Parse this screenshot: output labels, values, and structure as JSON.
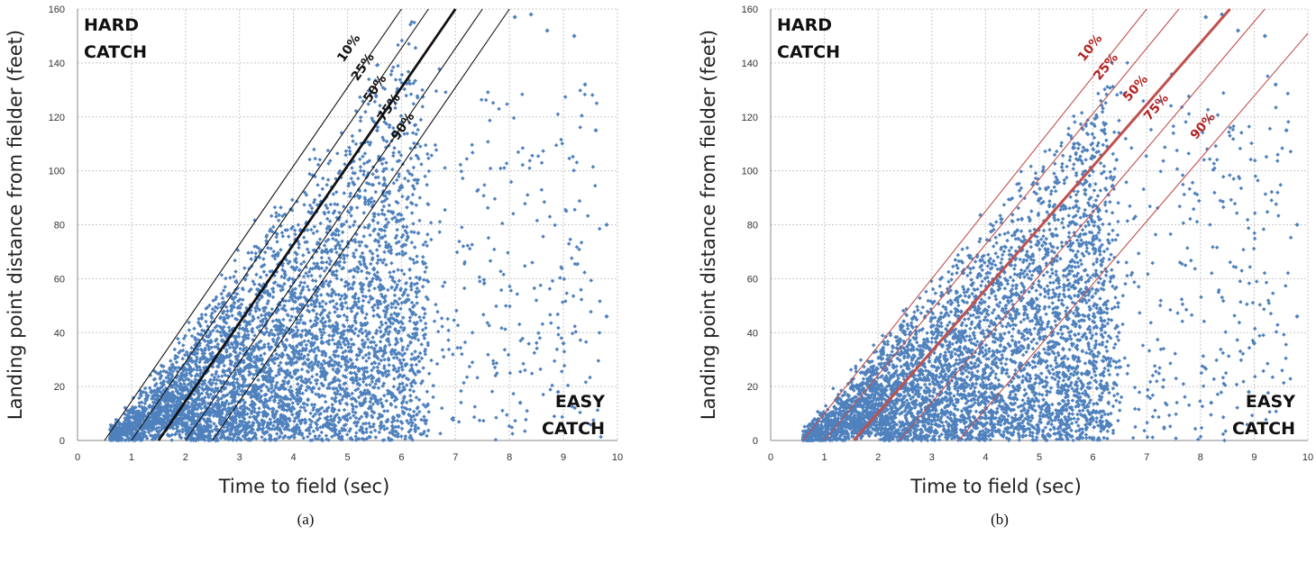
{
  "chart_data": [
    {
      "type": "scatter",
      "subcaption": "(a)",
      "xlabel": "Time to field (sec)",
      "ylabel": "Landing point distance from fielder (feet)",
      "xlim": [
        0,
        10
      ],
      "ylim": [
        0,
        160
      ],
      "xticks": [
        "0",
        "1",
        "2",
        "3",
        "4",
        "5",
        "6",
        "7",
        "8",
        "9",
        "10"
      ],
      "yticks": [
        "0",
        "20",
        "40",
        "60",
        "80",
        "100",
        "120",
        "140",
        "160"
      ],
      "grid": true,
      "point_color": "#4f81bd",
      "line_color": "#111111",
      "corner_labels": {
        "top_left": [
          "HARD",
          "CATCH"
        ],
        "bottom_right": [
          "EASY",
          "CATCH"
        ]
      },
      "percentile_lines": [
        {
          "label": "10%",
          "x0": 0.5,
          "x1": 6.0,
          "y1": 160,
          "width": 1.1
        },
        {
          "label": "25%",
          "x0": 1.0,
          "x1": 6.5,
          "y1": 160,
          "width": 1.1
        },
        {
          "label": "50%",
          "x0": 1.5,
          "x1": 7.0,
          "y1": 160,
          "width": 2.8
        },
        {
          "label": "75%",
          "x0": 2.0,
          "x1": 7.5,
          "y1": 160,
          "width": 1.1
        },
        {
          "label": "90%",
          "x0": 2.5,
          "x1": 8.0,
          "y1": 160,
          "width": 1.1
        }
      ],
      "points_summary": {
        "cloud_slope": 28.8,
        "min_time": 0.6,
        "max_time": 9.8,
        "sparse_outliers": [
          [
            9.8,
            80
          ],
          [
            9.8,
            46
          ],
          [
            9.6,
            115
          ],
          [
            9.4,
            132
          ],
          [
            9.2,
            150
          ],
          [
            8.7,
            152
          ],
          [
            8.4,
            158
          ],
          [
            8.1,
            157
          ],
          [
            9.0,
            36
          ],
          [
            8.9,
            18
          ],
          [
            8.2,
            14
          ]
        ]
      }
    },
    {
      "type": "scatter",
      "subcaption": "(b)",
      "xlabel": "Time to field (sec)",
      "ylabel": "Landing point distance from fielder (feet)",
      "xlim": [
        0,
        10
      ],
      "ylim": [
        0,
        160
      ],
      "xticks": [
        "0",
        "1",
        "2",
        "3",
        "4",
        "5",
        "6",
        "7",
        "8",
        "9",
        "10"
      ],
      "yticks": [
        "0",
        "20",
        "40",
        "60",
        "80",
        "100",
        "120",
        "140",
        "160"
      ],
      "grid": true,
      "point_color": "#4f81bd",
      "line_color": "#c0504d",
      "corner_labels": {
        "top_left": [
          "HARD",
          "CATCH"
        ],
        "bottom_right": [
          "EASY",
          "CATCH"
        ]
      },
      "percentile_lines": [
        {
          "label": "10%",
          "x0": 0.6,
          "x1": 7.0,
          "y1": 160,
          "width": 1.1
        },
        {
          "label": "25%",
          "x0": 1.0,
          "x1": 7.6,
          "y1": 160,
          "width": 1.1
        },
        {
          "label": "50%",
          "x0": 1.55,
          "x1": 8.55,
          "y1": 160,
          "width": 3.0
        },
        {
          "label": "75%",
          "x0": 2.4,
          "x1": 9.2,
          "y1": 160,
          "width": 1.1
        },
        {
          "label": "90%",
          "x0": 3.5,
          "x1": 10.0,
          "y1": 151,
          "width": 1.1
        }
      ],
      "points_summary": {
        "cloud_slope": 24.5,
        "min_time": 0.6,
        "max_time": 9.8,
        "sparse_outliers": [
          [
            9.8,
            80
          ],
          [
            9.8,
            46
          ],
          [
            9.6,
            115
          ],
          [
            9.4,
            132
          ],
          [
            9.2,
            150
          ],
          [
            8.7,
            152
          ],
          [
            8.4,
            158
          ],
          [
            8.1,
            157
          ],
          [
            9.0,
            36
          ],
          [
            8.9,
            18
          ],
          [
            8.2,
            14
          ]
        ]
      }
    }
  ]
}
